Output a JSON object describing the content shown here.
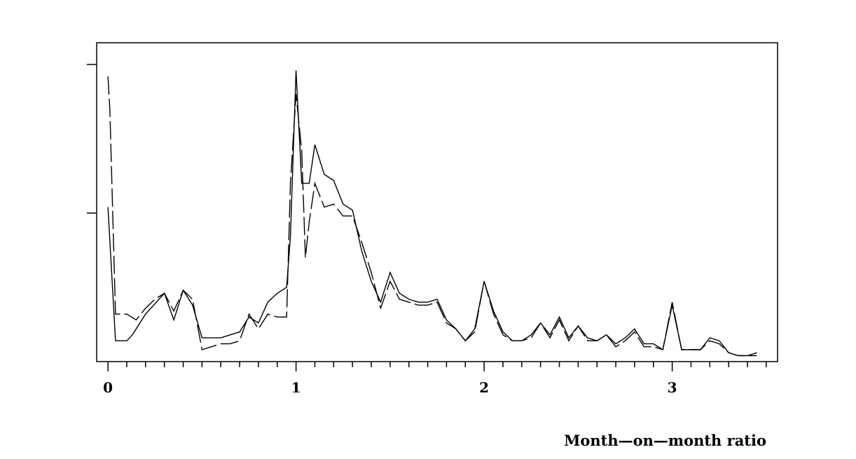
{
  "chart_data": {
    "type": "line",
    "title": "",
    "xlabel": "Month—on—month ratio",
    "ylabel": "",
    "xlim": [
      -0.06,
      3.56
    ],
    "ylim": [
      0,
      1.0
    ],
    "x_ticks": [
      0,
      1,
      2,
      3
    ],
    "x_tick_labels": [
      "0",
      "1",
      "2",
      "3"
    ],
    "y_ticks": [
      0.5,
      1.0
    ],
    "y_tick_labels": [],
    "grid": false,
    "colors": {
      "line": "#000000",
      "frame": "#000000",
      "background": "#ffffff"
    },
    "series": [
      {
        "style": "solid",
        "x": [
          0.0,
          0.04,
          0.07,
          0.1,
          0.13,
          0.2,
          0.3,
          0.35,
          0.4,
          0.45,
          0.5,
          0.55,
          0.6,
          0.7,
          0.75,
          0.8,
          0.85,
          0.9,
          0.95,
          0.97,
          1.0,
          1.03,
          1.07,
          1.1,
          1.15,
          1.2,
          1.25,
          1.3,
          1.35,
          1.4,
          1.45,
          1.5,
          1.55,
          1.6,
          1.65,
          1.7,
          1.75,
          1.8,
          1.85,
          1.9,
          1.95,
          2.0,
          2.05,
          2.1,
          2.15,
          2.2,
          2.25,
          2.3,
          2.35,
          2.4,
          2.45,
          2.5,
          2.55,
          2.6,
          2.65,
          2.7,
          2.75,
          2.8,
          2.85,
          2.9,
          2.95,
          3.0,
          3.05,
          3.1,
          3.15,
          3.2,
          3.25,
          3.3,
          3.35,
          3.4,
          3.45
        ],
        "y": [
          0.52,
          0.07,
          0.07,
          0.07,
          0.09,
          0.16,
          0.23,
          0.14,
          0.24,
          0.19,
          0.08,
          0.08,
          0.08,
          0.1,
          0.15,
          0.13,
          0.2,
          0.23,
          0.25,
          0.42,
          0.98,
          0.6,
          0.6,
          0.73,
          0.63,
          0.61,
          0.53,
          0.51,
          0.37,
          0.27,
          0.2,
          0.3,
          0.23,
          0.21,
          0.2,
          0.2,
          0.21,
          0.14,
          0.11,
          0.07,
          0.11,
          0.27,
          0.17,
          0.1,
          0.07,
          0.07,
          0.09,
          0.13,
          0.09,
          0.15,
          0.08,
          0.12,
          0.08,
          0.07,
          0.09,
          0.06,
          0.08,
          0.11,
          0.06,
          0.06,
          0.04,
          0.19,
          0.04,
          0.04,
          0.04,
          0.08,
          0.07,
          0.03,
          0.02,
          0.02,
          0.02
        ]
      },
      {
        "style": "dashed",
        "x": [
          0.0,
          0.01,
          0.04,
          0.05,
          0.07,
          0.1,
          0.15,
          0.2,
          0.25,
          0.3,
          0.35,
          0.4,
          0.45,
          0.5,
          0.55,
          0.6,
          0.65,
          0.7,
          0.75,
          0.8,
          0.85,
          0.9,
          0.95,
          0.97,
          1.0,
          1.03,
          1.05,
          1.07,
          1.1,
          1.15,
          1.2,
          1.25,
          1.3,
          1.35,
          1.4,
          1.45,
          1.5,
          1.55,
          1.6,
          1.65,
          1.7,
          1.75,
          1.8,
          1.85,
          1.9,
          1.95,
          2.0,
          2.05,
          2.1,
          2.15,
          2.2,
          2.25,
          2.3,
          2.35,
          2.4,
          2.45,
          2.5,
          2.55,
          2.6,
          2.65,
          2.7,
          2.75,
          2.8,
          2.85,
          2.9,
          2.95,
          3.0,
          3.05,
          3.1,
          3.15,
          3.2,
          3.25,
          3.3,
          3.35,
          3.4,
          3.45
        ],
        "y": [
          0.96,
          0.85,
          0.16,
          0.16,
          0.16,
          0.16,
          0.14,
          0.18,
          0.21,
          0.23,
          0.17,
          0.24,
          0.21,
          0.04,
          0.05,
          0.06,
          0.06,
          0.07,
          0.16,
          0.11,
          0.16,
          0.15,
          0.15,
          0.6,
          0.9,
          0.71,
          0.35,
          0.47,
          0.6,
          0.52,
          0.53,
          0.49,
          0.49,
          0.4,
          0.3,
          0.18,
          0.27,
          0.21,
          0.2,
          0.19,
          0.19,
          0.2,
          0.13,
          0.11,
          0.07,
          0.1,
          0.27,
          0.16,
          0.09,
          0.07,
          0.07,
          0.08,
          0.13,
          0.08,
          0.14,
          0.07,
          0.12,
          0.07,
          0.07,
          0.09,
          0.05,
          0.07,
          0.1,
          0.05,
          0.05,
          0.04,
          0.2,
          0.04,
          0.04,
          0.04,
          0.07,
          0.06,
          0.03,
          0.02,
          0.02,
          0.03
        ]
      }
    ]
  }
}
